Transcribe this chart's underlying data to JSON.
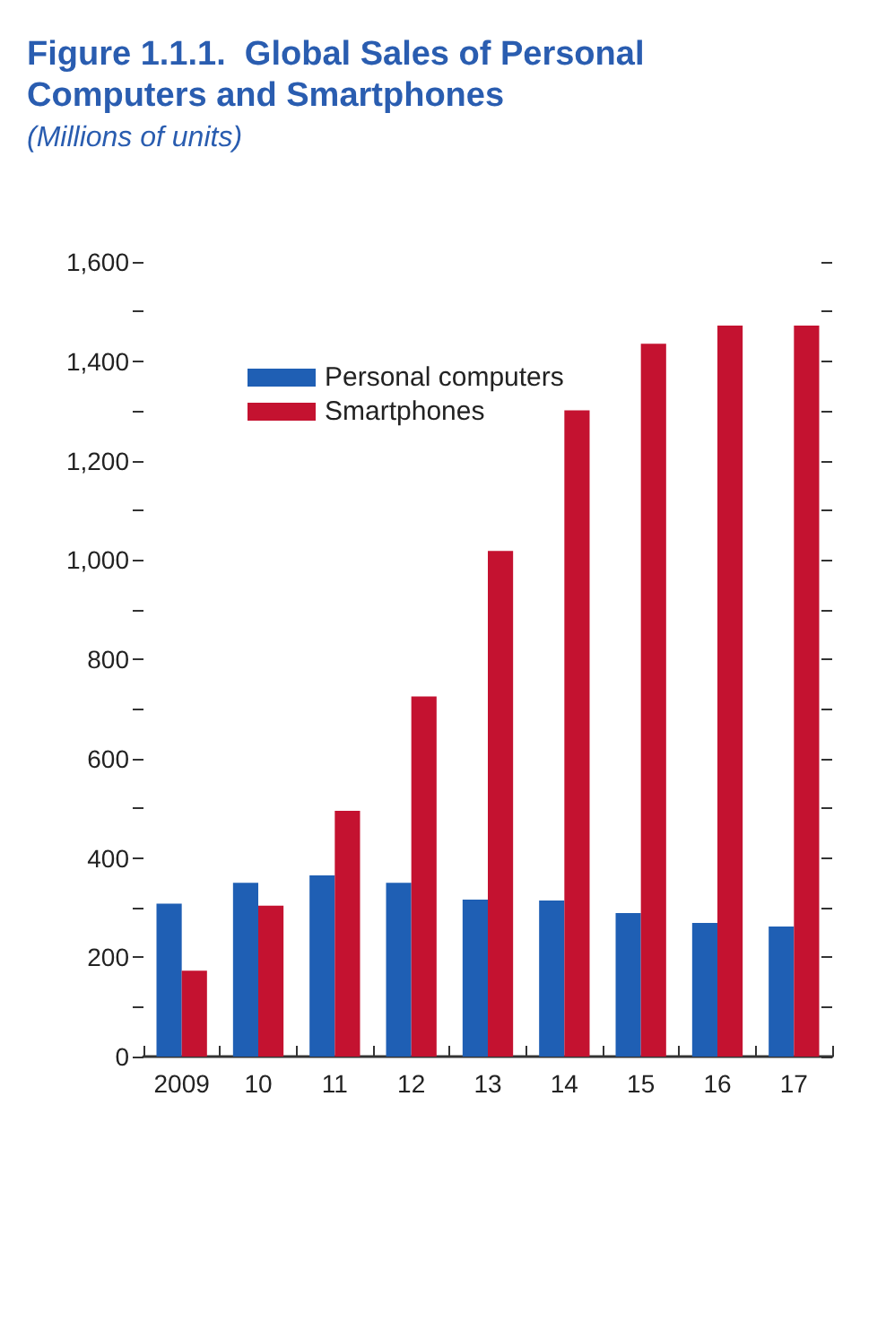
{
  "chart_data": {
    "type": "bar",
    "title": "Figure 1.1.1.  Global Sales of Personal Computers and Smartphones",
    "subtitle": "(Millions of units)",
    "categories": [
      "2009",
      "10",
      "11",
      "12",
      "13",
      "14",
      "15",
      "16",
      "17"
    ],
    "series": [
      {
        "name": "Personal computers",
        "color": "#1f5fb4",
        "values": [
          308,
          350,
          365,
          350,
          316,
          314,
          289,
          269,
          262
        ]
      },
      {
        "name": "Smartphones",
        "color": "#c41230",
        "values": [
          173,
          304,
          495,
          725,
          1018,
          1301,
          1435,
          1472,
          1472
        ]
      }
    ],
    "ylim": [
      0,
      1600
    ],
    "yticks": [
      0,
      {
        "value": 100,
        "label": null
      },
      200,
      {
        "value": 300,
        "label": null
      },
      400,
      {
        "value": 500,
        "label": null
      },
      600,
      {
        "value": 700,
        "label": null
      },
      800,
      {
        "value": 900,
        "label": null
      },
      {
        "value": 1000,
        "label": "1,000"
      },
      {
        "value": 1100,
        "label": null
      },
      {
        "value": 1200,
        "label": "1,200"
      },
      {
        "value": 1300,
        "label": null
      },
      {
        "value": 1400,
        "label": "1,400"
      },
      {
        "value": 1500,
        "label": null
      },
      {
        "value": 1600,
        "label": "1,600"
      }
    ],
    "grid": false,
    "legend": "top left"
  }
}
